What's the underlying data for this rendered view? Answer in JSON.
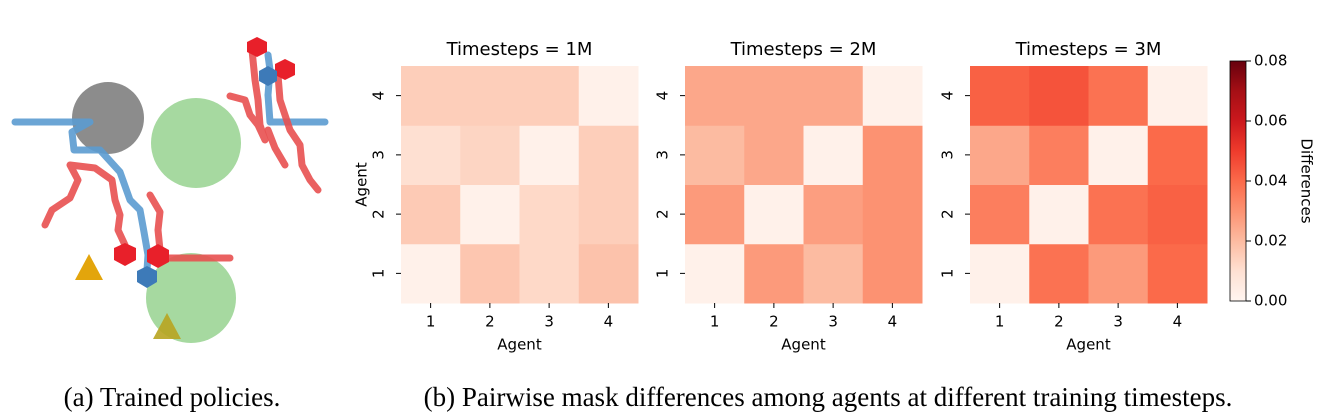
{
  "chart_data": [
    {
      "type": "heatmap",
      "title": "Timesteps = 1M",
      "xlabel": "Agent",
      "ylabel": "Agent",
      "x_categories": [
        "1",
        "2",
        "3",
        "4"
      ],
      "y_categories": [
        "1",
        "2",
        "3",
        "4"
      ],
      "values": [
        [
          0.002,
          0.017,
          0.012,
          0.018
        ],
        [
          0.016,
          0.002,
          0.012,
          0.015
        ],
        [
          0.01,
          0.013,
          0.002,
          0.015
        ],
        [
          0.015,
          0.015,
          0.015,
          0.002
        ]
      ],
      "colormap": "Reds",
      "zlim": [
        0,
        0.08
      ]
    },
    {
      "type": "heatmap",
      "title": "Timesteps = 2M",
      "xlabel": "Agent",
      "x_categories": [
        "1",
        "2",
        "3",
        "4"
      ],
      "y_categories": [
        "1",
        "2",
        "3",
        "4"
      ],
      "values": [
        [
          0.002,
          0.028,
          0.02,
          0.03
        ],
        [
          0.028,
          0.002,
          0.027,
          0.03
        ],
        [
          0.02,
          0.025,
          0.002,
          0.03
        ],
        [
          0.025,
          0.025,
          0.025,
          0.002
        ]
      ],
      "colormap": "Reds",
      "zlim": [
        0,
        0.08
      ]
    },
    {
      "type": "heatmap",
      "title": "Timesteps = 3M",
      "xlabel": "Agent",
      "x_categories": [
        "1",
        "2",
        "3",
        "4"
      ],
      "y_categories": [
        "1",
        "2",
        "3",
        "4"
      ],
      "values": [
        [
          0.002,
          0.038,
          0.028,
          0.04
        ],
        [
          0.035,
          0.002,
          0.038,
          0.042
        ],
        [
          0.025,
          0.035,
          0.002,
          0.04
        ],
        [
          0.042,
          0.045,
          0.038,
          0.002
        ]
      ],
      "colormap": "Reds",
      "zlim": [
        0,
        0.08
      ],
      "colorbar_label": "Differences",
      "zticks": [
        {
          "value": 0,
          "label": "0.00"
        },
        {
          "value": 0.02,
          "label": "0.02"
        },
        {
          "value": 0.04,
          "label": "0.04"
        },
        {
          "value": 0.06,
          "label": "0.06"
        },
        {
          "value": 0.08,
          "label": "0.08"
        }
      ]
    }
  ],
  "captions": {
    "a": "(a) Trained policies.",
    "b": "(b) Pairwise mask differences among agents at different training timesteps."
  }
}
